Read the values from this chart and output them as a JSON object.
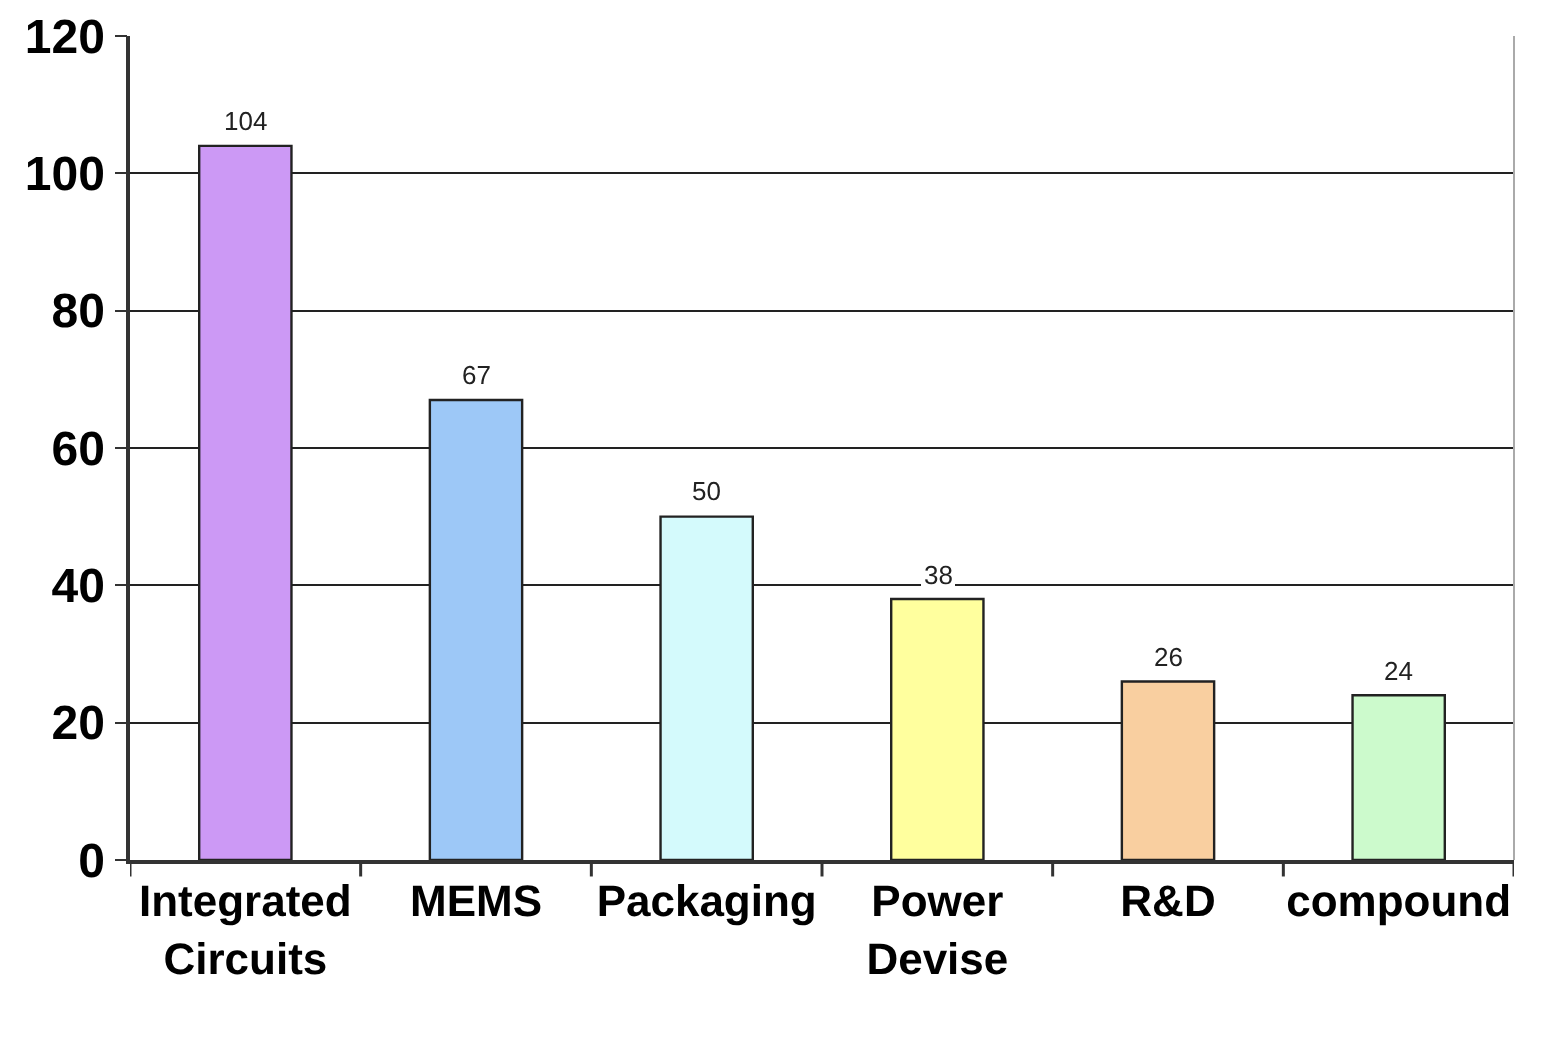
{
  "chart_data": {
    "type": "bar",
    "categories": [
      "Integrated Circuits",
      "MEMS",
      "Packaging",
      "Power Devise",
      "R&D",
      "compound"
    ],
    "values": [
      104,
      67,
      50,
      38,
      26,
      24
    ],
    "colors": [
      "#cc99f5",
      "#9dc8f7",
      "#d4fafc",
      "#ffff9e",
      "#f9cfa0",
      "#ccfacc"
    ],
    "ylim": [
      0,
      120
    ],
    "yticks": [
      0,
      20,
      40,
      60,
      80,
      100,
      120
    ],
    "grid": "y",
    "data_labels": true
  }
}
